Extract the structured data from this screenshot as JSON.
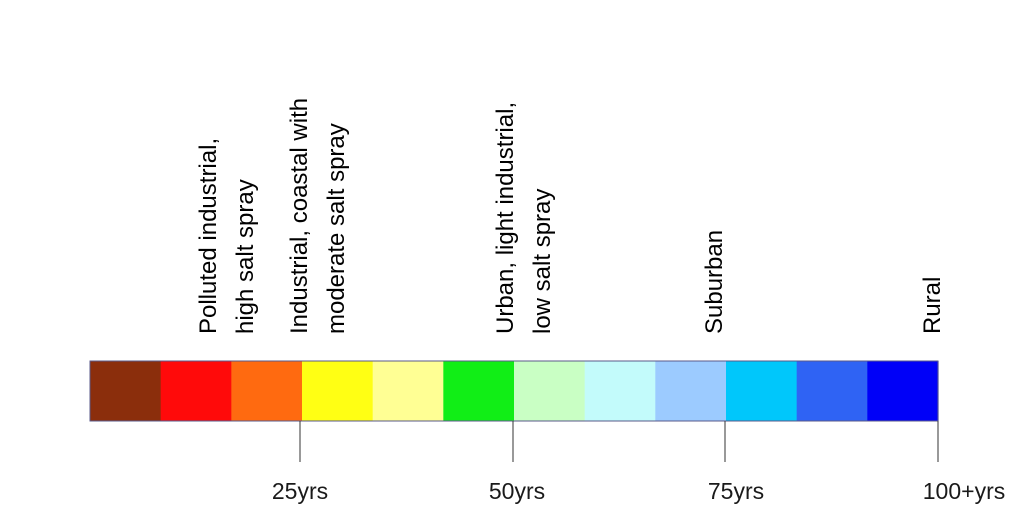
{
  "environments": [
    {
      "lines": [
        "Polluted industrial,",
        "high salt spray"
      ]
    },
    {
      "lines": [
        "Industrial, coastal with",
        "moderate salt spray"
      ]
    },
    {
      "lines": [
        "Urban, light industrial,",
        "low salt spray"
      ]
    },
    {
      "lines": [
        "Suburban"
      ]
    },
    {
      "lines": [
        "Rural"
      ]
    }
  ],
  "color_bands": [
    "#8b2e0c",
    "#ff0a0a",
    "#ff6a10",
    "#ffff14",
    "#ffff94",
    "#11ee16",
    "#c9ffc4",
    "#c3fbfb",
    "#9ccbff",
    "#00c7fb",
    "#2f63f4",
    "#0000f8"
  ],
  "ticks": [
    {
      "label": "25yrs"
    },
    {
      "label": "50yrs"
    },
    {
      "label": "75yrs"
    },
    {
      "label": "100+yrs"
    }
  ]
}
